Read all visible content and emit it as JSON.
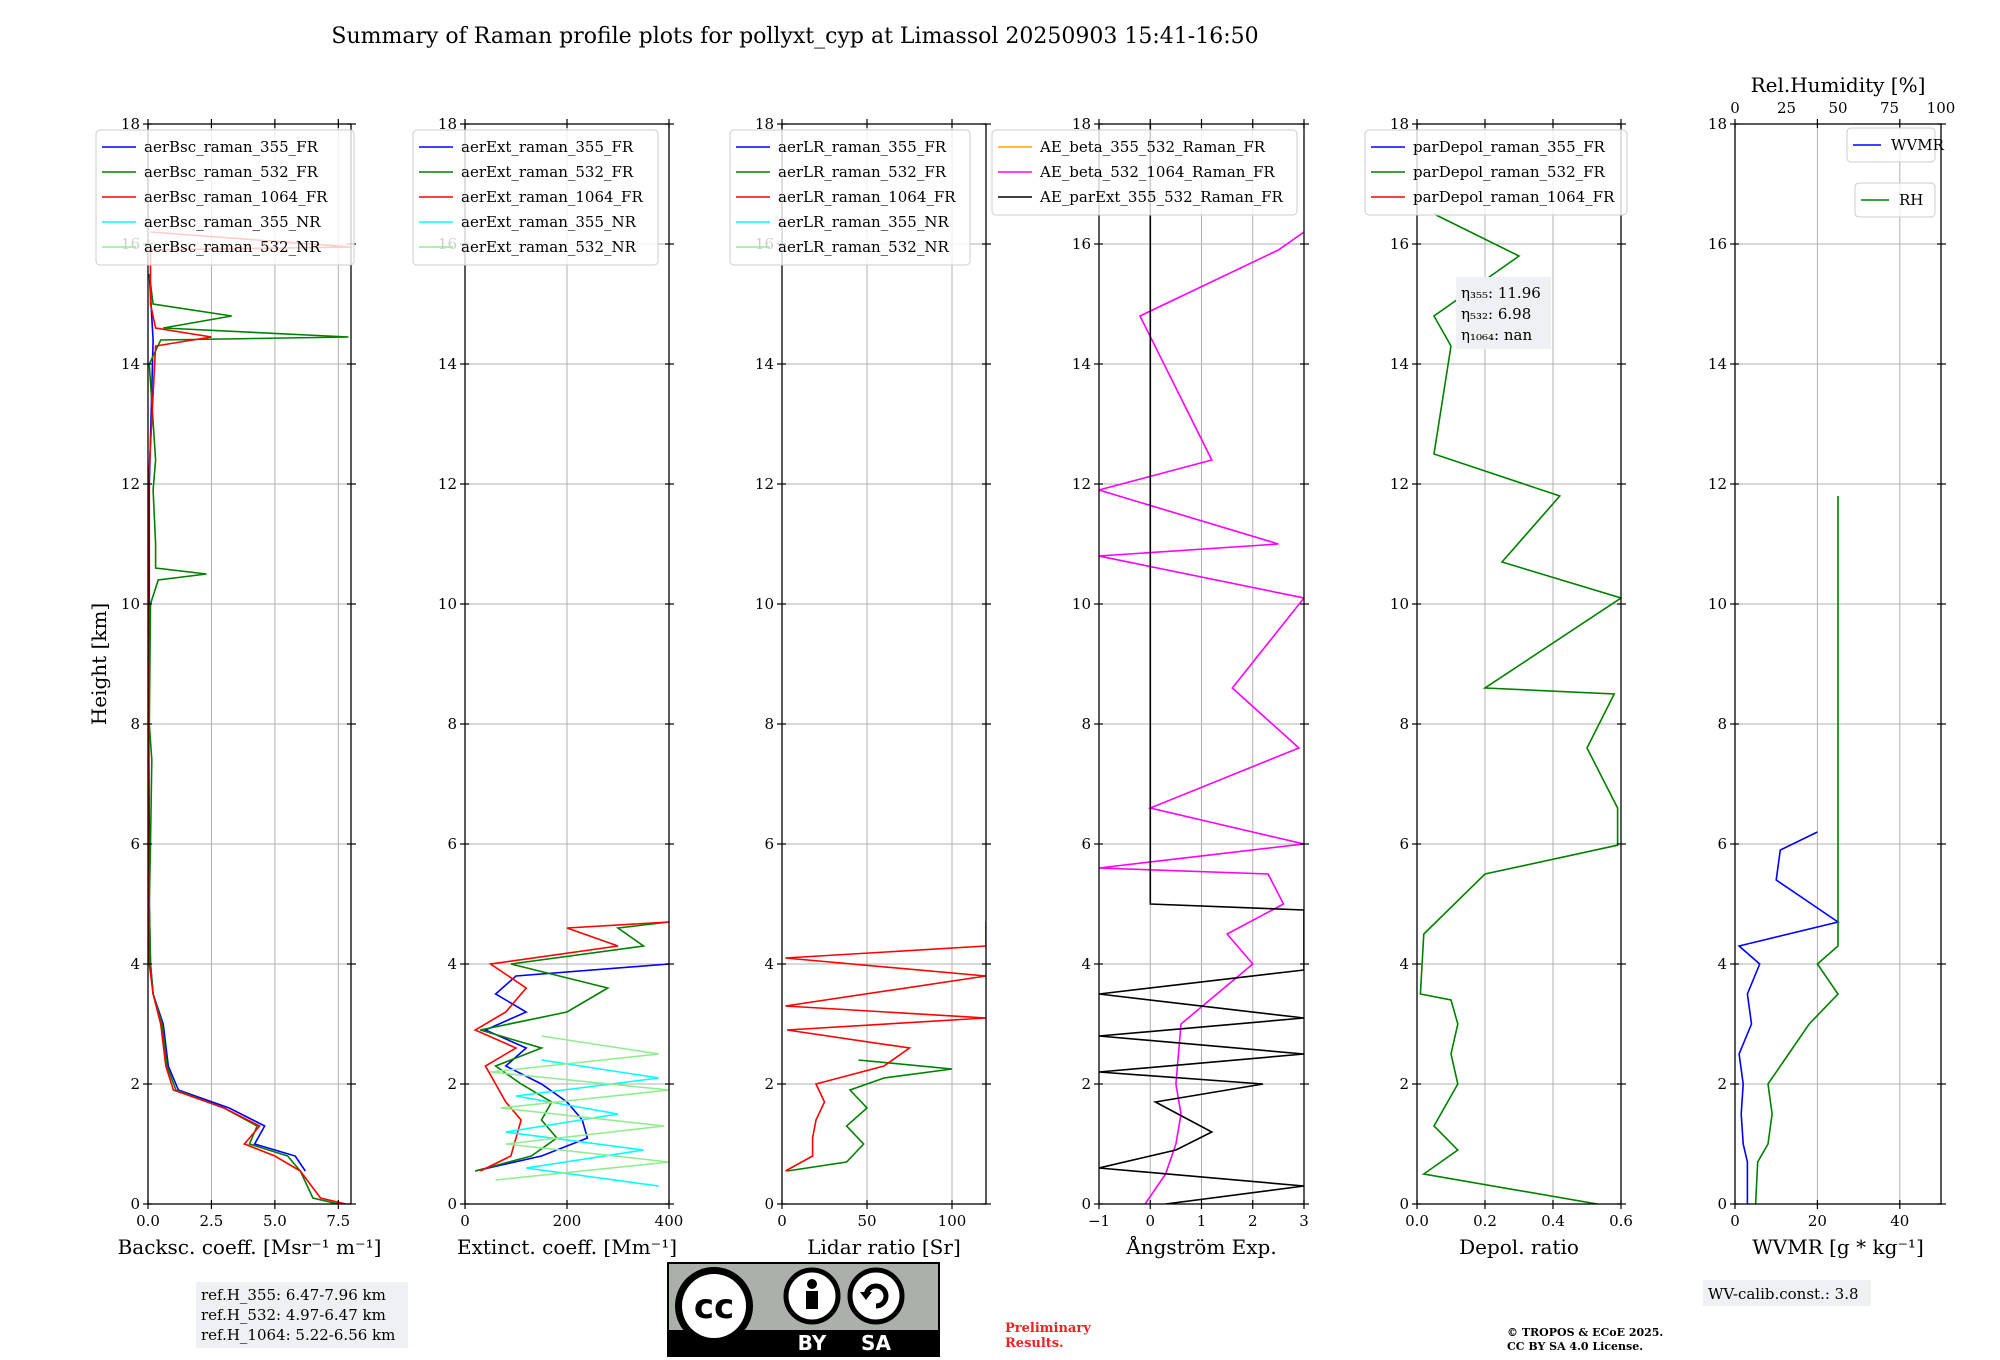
{
  "title": "Summary of Raman profile plots for pollyxt_cyp at Limassol 20250903 15:41-16:50",
  "chart_data": [
    {
      "type": "line",
      "id": "bsc",
      "xlabel": "Backsc. coeff. [Msr⁻¹ m⁻¹]",
      "ylabel": "Height [km]",
      "xlim": [
        0,
        8
      ],
      "ylim": [
        0,
        18
      ],
      "xticks": [
        "0.0",
        "2.5",
        "5.0",
        "7.5"
      ],
      "xtick_values": [
        0,
        2.5,
        5,
        7.5
      ],
      "yticks": [
        "0",
        "2",
        "4",
        "6",
        "8",
        "10",
        "12",
        "14",
        "16",
        "18"
      ],
      "series": [
        {
          "name": "aerBsc_raman_355_FR",
          "color": "#0000ff",
          "y": [
            0.55,
            0.8,
            1.0,
            1.3,
            1.6,
            1.9,
            2.3,
            3.0,
            3.5,
            4.0,
            5.0,
            6.0,
            8.0,
            10.0,
            12.0,
            14.4,
            15.5
          ],
          "x": [
            6.2,
            5.8,
            4.2,
            4.6,
            3.2,
            1.2,
            0.8,
            0.6,
            0.2,
            0.1,
            0.05,
            0.05,
            0.03,
            0.05,
            0.05,
            0.2,
            0.05
          ]
        },
        {
          "name": "aerBsc_raman_532_FR",
          "color": "#008000",
          "y": [
            0.0,
            0.1,
            0.55,
            0.8,
            1.0,
            1.3,
            1.6,
            1.9,
            2.3,
            3.0,
            3.5,
            4.0,
            5.0,
            6.0,
            7.4,
            8.0,
            10.0,
            10.4,
            10.5,
            10.6,
            11.0,
            11.9,
            12.4,
            14.0,
            14.4,
            14.45,
            14.6,
            14.8,
            15.0,
            15.5
          ],
          "x": [
            7.5,
            6.5,
            6.0,
            5.5,
            4.0,
            4.3,
            3.0,
            1.1,
            0.75,
            0.55,
            0.2,
            0.1,
            0.05,
            0.1,
            0.15,
            0.05,
            0.1,
            0.4,
            2.3,
            0.3,
            0.3,
            0.2,
            0.3,
            0.05,
            0.5,
            7.9,
            0.6,
            3.3,
            0.2,
            0.05
          ]
        },
        {
          "name": "aerBsc_raman_1064_FR",
          "color": "#ff0000",
          "y": [
            0.0,
            0.1,
            0.55,
            0.8,
            1.0,
            1.3,
            1.6,
            1.9,
            2.3,
            3.0,
            3.5,
            4.0,
            5.0,
            8.0,
            12.0,
            14.3,
            14.45,
            14.6,
            15.0,
            15.9,
            15.95,
            16.2
          ],
          "x": [
            7.8,
            6.8,
            6.0,
            5.0,
            3.8,
            4.4,
            3.0,
            1.0,
            0.7,
            0.5,
            0.2,
            0.05,
            0.02,
            0.02,
            0.02,
            0.3,
            2.5,
            0.3,
            0.1,
            0.1,
            8.0,
            0.1
          ]
        },
        {
          "name": "aerBsc_raman_355_NR",
          "color": "#00ffff",
          "y": [],
          "x": []
        },
        {
          "name": "aerBsc_raman_532_NR",
          "color": "#90ee90",
          "y": [],
          "x": []
        }
      ]
    },
    {
      "type": "line",
      "id": "ext",
      "xlabel": "Extinct. coeff. [Mm⁻¹]",
      "xlim": [
        0,
        400
      ],
      "ylim": [
        0,
        18
      ],
      "xticks": [
        "0",
        "200",
        "400"
      ],
      "xtick_values": [
        0,
        200,
        400
      ],
      "yticks": [
        "0",
        "2",
        "4",
        "6",
        "8",
        "10",
        "12",
        "14",
        "16",
        "18"
      ],
      "series": [
        {
          "name": "aerExt_raman_355_FR",
          "color": "#0000ff",
          "y": [
            0.55,
            0.8,
            1.1,
            1.4,
            1.7,
            2.0,
            2.3,
            2.6,
            2.9,
            3.2,
            3.5,
            3.8,
            4.0
          ],
          "x": [
            20,
            150,
            240,
            230,
            200,
            150,
            80,
            120,
            40,
            120,
            60,
            100,
            400
          ]
        },
        {
          "name": "aerExt_raman_532_FR",
          "color": "#008000",
          "y": [
            0.55,
            0.8,
            1.1,
            1.4,
            1.7,
            2.0,
            2.3,
            2.6,
            2.9,
            3.2,
            3.6,
            4.0,
            4.3,
            4.6,
            4.7
          ],
          "x": [
            20,
            130,
            180,
            150,
            170,
            110,
            60,
            150,
            30,
            200,
            280,
            90,
            350,
            300,
            400
          ]
        },
        {
          "name": "aerExt_raman_1064_FR",
          "color": "#ff0000",
          "y": [
            0.55,
            0.8,
            1.1,
            1.4,
            1.7,
            2.0,
            2.3,
            2.6,
            2.9,
            3.2,
            3.6,
            4.0,
            4.3,
            4.6,
            4.7
          ],
          "x": [
            30,
            90,
            100,
            110,
            80,
            60,
            40,
            100,
            20,
            80,
            120,
            50,
            300,
            200,
            400
          ]
        },
        {
          "name": "aerExt_raman_355_NR",
          "color": "#00ffff",
          "y": [
            0.3,
            0.6,
            0.9,
            1.2,
            1.5,
            1.8,
            2.1,
            2.4
          ],
          "x": [
            380,
            120,
            350,
            80,
            300,
            100,
            380,
            150
          ]
        },
        {
          "name": "aerExt_raman_532_NR",
          "color": "#90ee90",
          "y": [
            0.4,
            0.7,
            1.0,
            1.3,
            1.6,
            1.9,
            2.2,
            2.5,
            2.8
          ],
          "x": [
            60,
            400,
            80,
            390,
            70,
            400,
            50,
            380,
            150
          ]
        }
      ]
    },
    {
      "type": "line",
      "id": "lr",
      "xlabel": "Lidar ratio [Sr]",
      "xlim": [
        0,
        120
      ],
      "ylim": [
        0,
        18
      ],
      "xticks": [
        "0",
        "50",
        "100"
      ],
      "xtick_values": [
        0,
        50,
        100
      ],
      "yticks": [
        "0",
        "2",
        "4",
        "6",
        "8",
        "10",
        "12",
        "14",
        "16",
        "18"
      ],
      "series": [
        {
          "name": "aerLR_raman_355_FR",
          "color": "#0000ff",
          "y": [],
          "x": []
        },
        {
          "name": "aerLR_raman_532_FR",
          "color": "#008000",
          "y": [
            0.55,
            0.7,
            1.0,
            1.3,
            1.6,
            1.9,
            2.1,
            2.25,
            2.4
          ],
          "x": [
            3,
            38,
            48,
            38,
            50,
            40,
            60,
            100,
            45
          ]
        },
        {
          "name": "aerLR_raman_1064_FR",
          "color": "#ff0000",
          "y": [
            0.55,
            0.8,
            1.1,
            1.4,
            1.7,
            2.0,
            2.3,
            2.6,
            2.9,
            3.1,
            3.3,
            3.8,
            4.1,
            4.3,
            4.7
          ],
          "x": [
            2,
            18,
            18,
            20,
            25,
            20,
            60,
            75,
            3,
            120,
            2,
            120,
            2,
            120,
            120
          ]
        },
        {
          "name": "aerLR_raman_355_NR",
          "color": "#00ffff",
          "y": [],
          "x": []
        },
        {
          "name": "aerLR_raman_532_NR",
          "color": "#90ee90",
          "y": [],
          "x": []
        }
      ]
    },
    {
      "type": "line",
      "id": "ae",
      "xlabel": "Ångström Exp.",
      "xlim": [
        -1,
        3
      ],
      "ylim": [
        0,
        18
      ],
      "xticks": [
        "−1",
        "0",
        "1",
        "2",
        "3"
      ],
      "xtick_values": [
        -1,
        0,
        1,
        2,
        3
      ],
      "yticks": [
        "0",
        "2",
        "4",
        "6",
        "8",
        "10",
        "12",
        "14",
        "16",
        "18"
      ],
      "series": [
        {
          "name": "AE_beta_355_532_Raman_FR",
          "color": "#ffa500",
          "y": [],
          "x": []
        },
        {
          "name": "AE_beta_532_1064_Raman_FR",
          "color": "#ff00ff",
          "y": [
            0.0,
            0.5,
            1.0,
            1.5,
            2.0,
            3.0,
            4.0,
            4.5,
            5.0,
            5.5,
            5.6,
            6.0,
            6.6,
            7.6,
            8.6,
            10.1,
            10.8,
            11.0,
            11.9,
            12.4,
            14.8,
            15.9,
            16.2
          ],
          "x": [
            -0.1,
            0.3,
            0.5,
            0.6,
            0.5,
            0.6,
            2.0,
            1.5,
            2.6,
            2.3,
            -1.0,
            3.0,
            0.0,
            2.9,
            1.6,
            3.0,
            -1.0,
            2.5,
            -1.0,
            1.2,
            -0.2,
            2.5,
            3.0
          ]
        },
        {
          "name": "AE_parExt_355_532_Raman_FR",
          "color": "#000000",
          "y": [
            0.0,
            0.3,
            0.6,
            0.9,
            1.2,
            1.7,
            2.0,
            2.2,
            2.5,
            2.8,
            3.1,
            3.5,
            3.9,
            4.3,
            4.9,
            5.0,
            5.0,
            18.0
          ],
          "x": [
            0.3,
            3.0,
            -1.0,
            0.5,
            1.2,
            0.1,
            2.2,
            -1.0,
            3.0,
            -1.0,
            3.0,
            -1.0,
            3.0,
            3.0,
            3.0,
            0.0,
            0.0,
            0.0
          ]
        }
      ]
    },
    {
      "type": "line",
      "id": "dep",
      "xlabel": "Depol. ratio",
      "xlim": [
        0,
        0.6
      ],
      "ylim": [
        0,
        18
      ],
      "xticks": [
        "0.0",
        "0.2",
        "0.4",
        "0.6"
      ],
      "xtick_values": [
        0,
        0.2,
        0.4,
        0.6
      ],
      "yticks": [
        "0",
        "2",
        "4",
        "6",
        "8",
        "10",
        "12",
        "14",
        "16",
        "18"
      ],
      "annotations": [
        "η₃₅₅: 11.96",
        "η₅₃₂: 6.98",
        "η₁₀₆₄: nan"
      ],
      "series": [
        {
          "name": "parDepol_raman_355_FR",
          "color": "#0000ff",
          "y": [],
          "x": []
        },
        {
          "name": "parDepol_raman_532_FR",
          "color": "#008000",
          "y": [
            0.0,
            0.5,
            0.9,
            1.3,
            2.0,
            2.5,
            3.0,
            3.4,
            3.5,
            4.5,
            5.5,
            5.98,
            6.6,
            7.6,
            8.5,
            8.6,
            10.1,
            10.7,
            11.8,
            12.5,
            14.3,
            14.8,
            15.8,
            16.5
          ],
          "x": [
            0.53,
            0.02,
            0.12,
            0.05,
            0.12,
            0.1,
            0.12,
            0.1,
            0.01,
            0.02,
            0.2,
            0.59,
            0.59,
            0.5,
            0.58,
            0.2,
            0.6,
            0.25,
            0.42,
            0.05,
            0.1,
            0.05,
            0.3,
            0.05
          ]
        },
        {
          "name": "parDepol_raman_1064_FR",
          "color": "#ff0000",
          "y": [],
          "x": []
        }
      ]
    },
    {
      "type": "line",
      "id": "wv",
      "xlabel": "WVMR [g * kg⁻¹]",
      "xlim": [
        0,
        50
      ],
      "ylim": [
        0,
        18
      ],
      "xticks": [
        "0",
        "20",
        "40"
      ],
      "xtick_values": [
        0,
        20,
        40
      ],
      "top_xlabel": "Rel.Humidity [%]",
      "top_xlim": [
        0,
        100
      ],
      "top_xticks": [
        "0",
        "25",
        "50",
        "75",
        "100"
      ],
      "top_xtick_values": [
        0,
        25,
        50,
        75,
        100
      ],
      "yticks": [
        "0",
        "2",
        "4",
        "6",
        "8",
        "10",
        "12",
        "14",
        "16",
        "18"
      ],
      "series": [
        {
          "name": "WVMR",
          "color": "#0000ff",
          "y": [
            0.0,
            0.7,
            1.0,
            1.5,
            2.0,
            2.5,
            3.0,
            3.5,
            4.0,
            4.3,
            4.7,
            5.4,
            5.9,
            6.2
          ],
          "x": [
            3,
            3,
            2,
            1.5,
            2,
            1,
            4,
            3,
            6,
            1,
            25,
            10,
            11,
            20
          ]
        },
        {
          "name": "RH",
          "color": "#008000",
          "y": [
            0.0,
            0.7,
            1.0,
            1.5,
            2.0,
            2.5,
            3.0,
            3.5,
            4.0,
            4.3,
            4.7,
            6.1,
            11.8
          ],
          "x": [
            10,
            11,
            16,
            18,
            16,
            26,
            36,
            50,
            40,
            50,
            50,
            50,
            50
          ]
        }
      ]
    }
  ],
  "info": {
    "refh": [
      "ref.H_355: 6.47-7.96 km",
      "ref.H_532: 4.97-6.47 km",
      "ref.H_1064: 5.22-6.56 km"
    ],
    "wv_calib": "WV-calib.const.: 3.8",
    "preliminary": [
      "Preliminary",
      "Results."
    ],
    "copyright": [
      "© TROPOS & ECoE 2025.",
      "CC BY SA 4.0 License."
    ],
    "cc_logo": {
      "cc": "cc",
      "by": "BY",
      "sa": "SA"
    }
  }
}
